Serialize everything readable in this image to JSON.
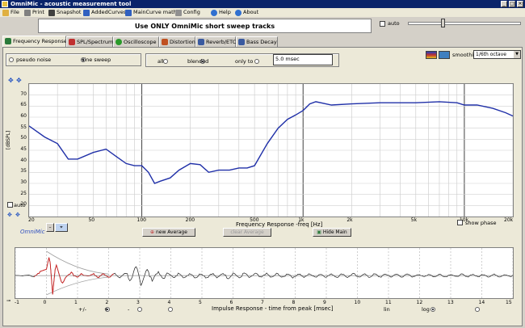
{
  "window": {
    "title": "OmniMic - acoustic measurement tool"
  },
  "menu": [
    {
      "label": "File",
      "icon": "folder-icon"
    },
    {
      "label": "Print",
      "icon": "printer-icon"
    },
    {
      "label": "Snapshot",
      "icon": "camera-icon"
    },
    {
      "label": "AddedCurves",
      "icon": "curves-icon"
    },
    {
      "label": "MainCurve math",
      "icon": "math-icon"
    },
    {
      "label": "Config",
      "icon": "tools-icon"
    },
    {
      "label": "Help",
      "icon": "help-icon"
    },
    {
      "label": "About",
      "icon": "info-icon"
    }
  ],
  "banner": "Use ONLY OmniMic short sweep tracks",
  "auto_label": "auto",
  "tabs": [
    {
      "label": "Frequency Response",
      "color": "#2a7a3a"
    },
    {
      "label": "SPL/Spectrum",
      "color": "#c03030"
    },
    {
      "label": "Oscilloscope",
      "color": "#2a9a2a"
    },
    {
      "label": "Distortion",
      "color": "#c05020"
    },
    {
      "label": "Reverb/ETC",
      "color": "#3a5aa0"
    },
    {
      "label": "Bass Decay",
      "color": "#3a5aa0"
    }
  ],
  "signal": {
    "options": [
      "pseudo noise",
      "sine sweep"
    ],
    "selected": 1
  },
  "window_mode": {
    "options": [
      "all",
      "blended",
      "only to"
    ],
    "selected": 1,
    "value": "5.0 msec"
  },
  "smoothing": {
    "label": "smoothing",
    "value": "1/6th octave"
  },
  "fr_plot": {
    "ylabel": "[dBSPL]",
    "yticks": [
      "70",
      "65",
      "60",
      "55",
      "50",
      "45",
      "40",
      "35",
      "30",
      "25",
      "20"
    ],
    "xticks": [
      "20",
      "50",
      "100",
      "200",
      "500",
      "1k",
      "2k",
      "5k",
      "10k",
      "20k"
    ],
    "xlabel": "Frequency Response -freq [Hz]",
    "auto_label": "auto",
    "logo": "OmniMic",
    "show_phase": "show phase",
    "buttons": {
      "new_average": "new Average",
      "clear_average": "clear Average",
      "hide_main": "Hide Main"
    }
  },
  "chart_data": [
    {
      "type": "line",
      "xlabel": "Frequency Response -freq [Hz]",
      "ylabel": "[dBSPL]",
      "xscale": "log",
      "xlim": [
        20,
        20000
      ],
      "ylim": [
        20,
        70
      ],
      "grid": true,
      "series": [
        {
          "x": [
            20,
            25,
            30,
            35,
            40,
            50,
            60,
            70,
            80,
            90,
            100,
            110,
            120,
            130,
            150,
            170,
            200,
            230,
            260,
            300,
            350,
            400,
            450,
            500,
            600,
            700,
            800,
            900,
            1000,
            1100,
            1200,
            1500,
            2000,
            3000,
            5000,
            7000,
            9000,
            10000,
            12000,
            15000,
            18000,
            20000
          ],
          "y": [
            56,
            51,
            48,
            41,
            41,
            44,
            45.5,
            42,
            39,
            38,
            38,
            35,
            30,
            31,
            32.5,
            36,
            39,
            38.5,
            35,
            36,
            36,
            37,
            37,
            38,
            48,
            55,
            59,
            61,
            63,
            66,
            67,
            65.5,
            66,
            66.5,
            66.5,
            67,
            66.5,
            65.5,
            65.5,
            64,
            62,
            60.5
          ]
        }
      ]
    },
    {
      "type": "line",
      "xlabel": "Impulse Response  - time from peak [msec]",
      "xlim": [
        -1,
        15
      ],
      "grid": true,
      "series": [
        {
          "x": [
            -1,
            -0.5,
            0,
            0.1,
            0.2,
            0.3,
            0.5,
            0.8,
            1,
            1.5,
            2,
            2.5,
            2.8,
            3,
            3.5,
            4,
            5,
            6,
            7,
            8,
            9,
            10,
            11,
            12,
            13,
            14,
            15
          ],
          "y": [
            0,
            0.05,
            0.3,
            1,
            -0.9,
            0.6,
            -0.4,
            0.3,
            -0.2,
            0.15,
            0.1,
            0.2,
            0.5,
            0.6,
            0.25,
            0.2,
            0.15,
            0.2,
            0.15,
            0.15,
            0.1,
            0.15,
            0.1,
            0.1,
            0.1,
            0.1,
            0.08
          ]
        }
      ]
    }
  ],
  "ir_plot": {
    "xticks": [
      "-1",
      "0",
      "1",
      "2",
      "3",
      "4",
      "5",
      "6",
      "7",
      "8",
      "9",
      "10",
      "11",
      "12",
      "13",
      "14",
      "15"
    ],
    "xlabel": "Impulse Response  - time from peak [msec]",
    "polarity": [
      "+/-",
      "+",
      "-"
    ],
    "scale": [
      "lin",
      "log"
    ]
  }
}
